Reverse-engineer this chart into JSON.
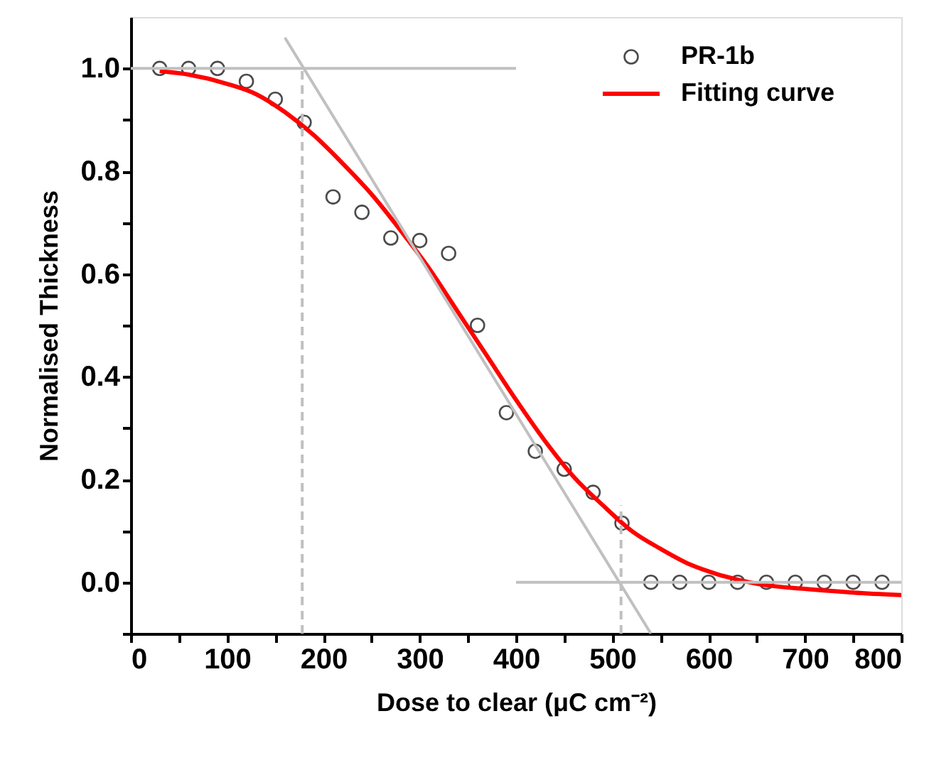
{
  "chart_data": {
    "type": "scatter",
    "xlabel": "Dose to clear (μC cm⁻²)",
    "ylabel": "Normalised Thickness",
    "xlim": [
      0,
      800
    ],
    "ylim": [
      -0.1,
      1.1
    ],
    "xticks": [
      0,
      {
        "value": 50,
        "label": null
      },
      100,
      {
        "value": 150,
        "label": null
      },
      200,
      {
        "value": 250,
        "label": null
      },
      300,
      {
        "value": 350,
        "label": null
      },
      400,
      {
        "value": 450,
        "label": null
      },
      500,
      {
        "value": 550,
        "label": null
      },
      600,
      {
        "value": 650,
        "label": null
      },
      700,
      {
        "value": 750,
        "label": null
      },
      800
    ],
    "yticks": [
      {
        "value": -0.1,
        "label": null
      },
      {
        "value": 0,
        "label": "0.0"
      },
      {
        "value": 0.1,
        "label": null
      },
      0.2,
      {
        "value": 0.3,
        "label": null
      },
      0.4,
      {
        "value": 0.5,
        "label": null
      },
      0.6,
      {
        "value": 0.7,
        "label": null
      },
      0.8,
      {
        "value": 0.9,
        "label": null
      },
      {
        "value": 1,
        "label": "1.0"
      }
    ],
    "grid": false,
    "legend": "top right",
    "x": [
      30,
      60,
      90,
      120,
      150,
      180,
      210,
      240,
      270,
      300,
      330,
      360,
      390,
      420,
      450,
      480,
      510,
      540,
      570,
      600,
      630,
      660,
      690,
      720,
      750,
      780
    ],
    "series": [
      {
        "name": "PR-1b",
        "marker": "circle",
        "color": "#000000",
        "values": [
          1.0,
          1.0,
          1.0,
          0.975,
          0.94,
          0.895,
          0.75,
          0.72,
          0.67,
          0.665,
          0.64,
          0.5,
          0.33,
          0.255,
          0.22,
          0.175,
          0.115,
          0,
          0,
          0,
          0,
          0,
          0,
          0,
          0,
          0
        ]
      },
      {
        "name": "Fitting curve",
        "type": "line",
        "marker": "none",
        "line_style": "solid",
        "color": "#ff0000",
        "x": [
          30,
          60,
          100,
          130,
          160,
          190,
          220,
          250,
          280,
          310,
          340,
          370,
          400,
          430,
          460,
          490,
          520,
          550,
          580,
          610,
          650,
          700,
          750,
          800
        ],
        "values": [
          0.995,
          0.988,
          0.97,
          0.95,
          0.915,
          0.87,
          0.815,
          0.755,
          0.685,
          0.61,
          0.525,
          0.44,
          0.355,
          0.275,
          0.205,
          0.15,
          0.1,
          0.065,
          0.035,
          0.015,
          -0.003,
          -0.013,
          -0.02,
          -0.025
        ]
      },
      {
        "type": "line",
        "marker": "none",
        "line_style": "solid",
        "color": "#c0c0c0",
        "x": [
          0,
          400
        ],
        "values": [
          1,
          1
        ]
      },
      {
        "type": "line",
        "marker": "none",
        "line_style": "solid",
        "color": "#c0c0c0",
        "x": [
          400,
          800
        ],
        "values": [
          0,
          0
        ]
      },
      {
        "type": "line",
        "marker": "none",
        "line_style": "solid",
        "color": "#c0c0c0",
        "x": [
          160,
          540
        ],
        "values": [
          1.06,
          -0.1
        ]
      },
      {
        "type": "line",
        "marker": "none",
        "line_style": "dashed",
        "color": "#c0c0c0",
        "x": [
          178,
          178
        ],
        "values": [
          -0.1,
          1.0
        ]
      },
      {
        "type": "line",
        "marker": "none",
        "line_style": "dashed",
        "color": "#c0c0c0",
        "x": [
          509,
          509
        ],
        "values": [
          -0.1,
          0.15
        ]
      }
    ]
  }
}
